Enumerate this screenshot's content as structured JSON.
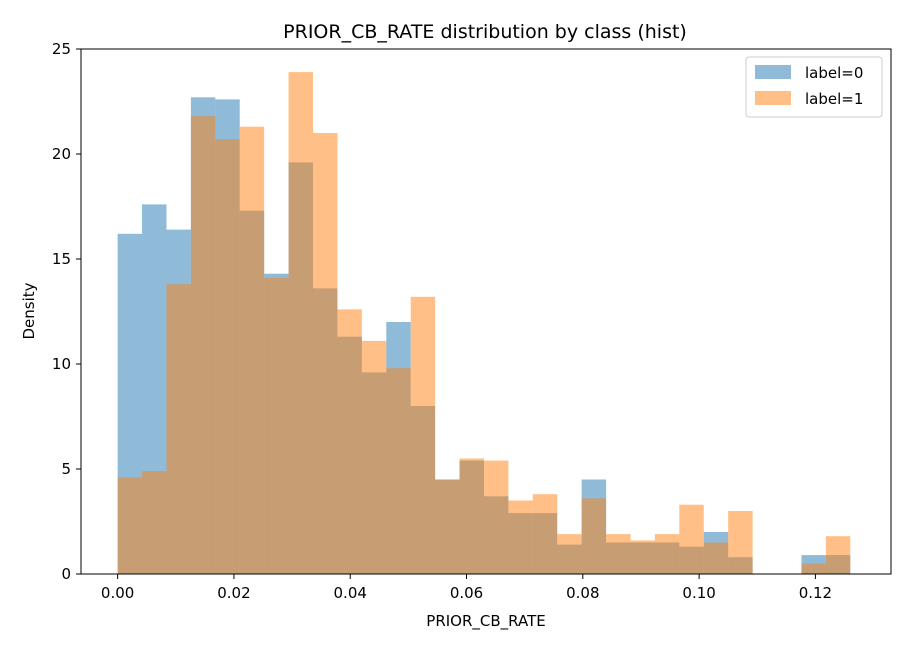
{
  "chart_data": {
    "type": "histogram",
    "title": "PRIOR_CB_RATE distribution by class (hist)",
    "xlabel": "PRIOR_CB_RATE",
    "ylabel": "Density",
    "xlim": [
      -0.0063,
      0.133
    ],
    "ylim": [
      0,
      25
    ],
    "xticks": [
      "0.00",
      "0.02",
      "0.04",
      "0.06",
      "0.08",
      "0.10",
      "0.12"
    ],
    "xtick_values": [
      0.0,
      0.02,
      0.04,
      0.06,
      0.08,
      0.1,
      0.12
    ],
    "yticks": [
      "0",
      "5",
      "10",
      "15",
      "20",
      "25"
    ],
    "ytick_values": [
      0,
      5,
      10,
      15,
      20,
      25
    ],
    "grid": false,
    "legend_position": "top-right",
    "bin_edges": [
      0.0,
      0.0042,
      0.0084,
      0.0126,
      0.0168,
      0.021,
      0.0252,
      0.0294,
      0.0336,
      0.0378,
      0.042,
      0.0462,
      0.0504,
      0.0546,
      0.0588,
      0.063,
      0.0672,
      0.0714,
      0.0756,
      0.0798,
      0.084,
      0.0882,
      0.0924,
      0.0966,
      0.1008,
      0.105,
      0.1092,
      0.1134,
      0.1176,
      0.1218,
      0.126
    ],
    "series": [
      {
        "name": "label=0",
        "color": "#1f77b4",
        "opacity": 0.5,
        "values": [
          16.2,
          17.6,
          16.4,
          22.7,
          22.6,
          17.3,
          14.3,
          19.6,
          13.6,
          11.3,
          9.6,
          12.0,
          8.0,
          4.5,
          5.4,
          3.7,
          2.9,
          2.9,
          1.4,
          4.5,
          1.5,
          1.5,
          1.5,
          1.3,
          2.0,
          0.8,
          0.0,
          0.0,
          0.9,
          0.9
        ]
      },
      {
        "name": "label=1",
        "color": "#ff7f0e",
        "opacity": 0.5,
        "values": [
          4.6,
          4.9,
          13.8,
          21.8,
          20.7,
          21.3,
          14.1,
          23.9,
          21.0,
          12.6,
          11.1,
          9.8,
          13.2,
          4.5,
          5.5,
          5.4,
          3.5,
          3.8,
          1.9,
          3.6,
          1.9,
          1.6,
          1.9,
          3.3,
          1.5,
          3.0,
          0.0,
          0.0,
          0.5,
          1.8
        ]
      }
    ]
  }
}
